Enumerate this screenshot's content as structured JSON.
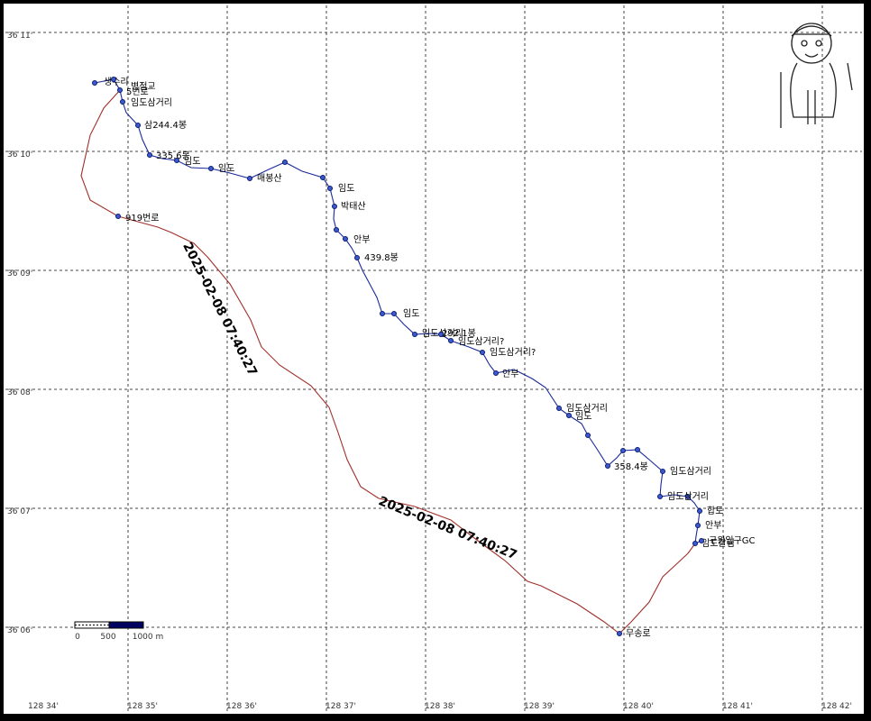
{
  "map": {
    "lat_labels": [
      "36 11'",
      "36 10'",
      "36 09'",
      "36 08'",
      "36 07'",
      "36 06'"
    ],
    "lon_labels": [
      "128 34'",
      "128 35'",
      "128 36'",
      "128 37'",
      "128 38'",
      "128 39'",
      "128 40'",
      "128 41'",
      "128 42'"
    ],
    "waypoints": [
      "생수리",
      "병점교",
      "5번로",
      "임도삼거리",
      "삼244.4봉",
      "335.6봉",
      "임도",
      "임도",
      "매봉산",
      "임도",
      "박태산",
      "안부",
      "439.8봉",
      "임도",
      "임도삼거리",
      "292.1봉",
      "임도삼거리?",
      "임도삼거리?",
      "안부",
      "임도삼거리",
      "임도",
      "358.4봉",
      "임도삼거리",
      "임도삼거리",
      "합토",
      "안부",
      "임도갈림",
      "구원입구GC",
      "무송로",
      "919번로"
    ],
    "track_labels": [
      "2025-02-08 07:40:27",
      "2025-02-08 07:40:27"
    ],
    "scale_labels": [
      "0",
      "500",
      "1000 m"
    ]
  }
}
